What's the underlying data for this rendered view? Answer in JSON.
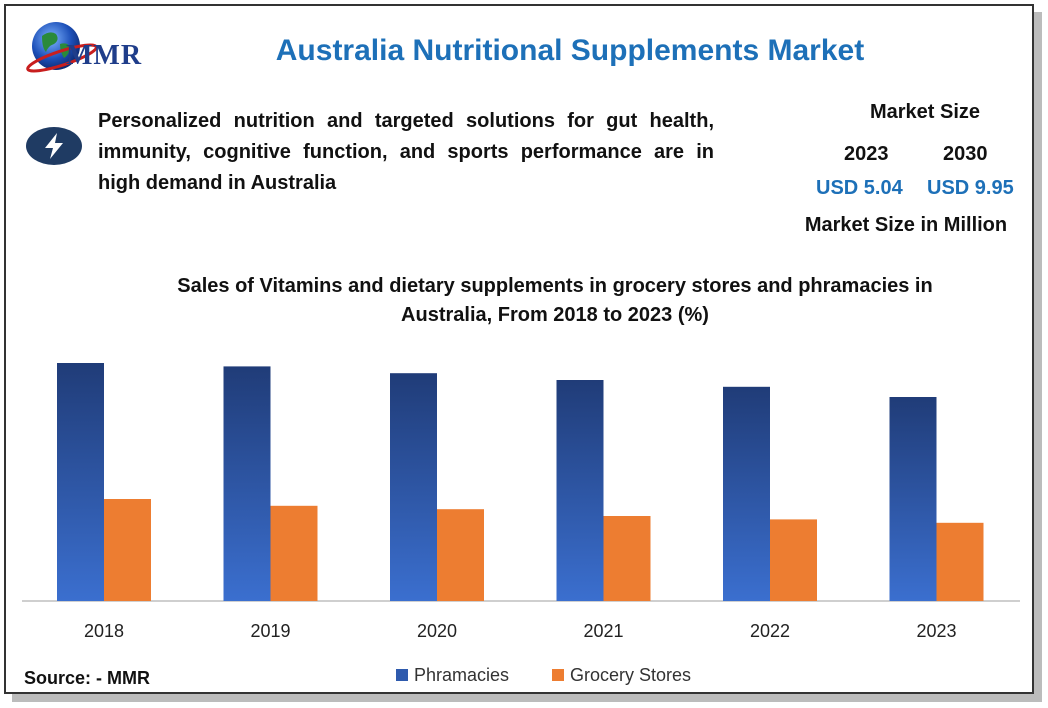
{
  "header": {
    "logo_text": "MMR",
    "title": "Australia Nutritional Supplements Market"
  },
  "headline": {
    "icon": "lightning-bolt-icon",
    "text": "Personalized nutrition and targeted solutions for gut health, immunity, cognitive function, and sports performance are in high demand in Australia"
  },
  "market_size": {
    "label": "Market Size",
    "year_2023": "2023",
    "year_2030": "2030",
    "value_2023": "USD 5.04",
    "value_2030": "USD 9.95",
    "unit": "Market Size in Million"
  },
  "source": "Source: - MMR",
  "colors": {
    "title_blue": "#1d70b8",
    "pharmacies_top": "#203c78",
    "pharmacies_bottom": "#3b6fcf",
    "grocery": "#ed7d31"
  },
  "chart_data": {
    "type": "bar",
    "title": "Sales of Vitamins and dietary supplements in grocery stores and phramacies in Australia, From 2018 to 2023 (%)",
    "categories": [
      "2018",
      "2019",
      "2020",
      "2021",
      "2022",
      "2023"
    ],
    "series": [
      {
        "name": "Phramacies",
        "values": [
          70,
          69,
          67,
          65,
          63,
          60
        ]
      },
      {
        "name": "Grocery Stores",
        "values": [
          30,
          28,
          27,
          25,
          24,
          23
        ]
      }
    ],
    "xlabel": "",
    "ylabel": "",
    "ylim": [
      0,
      75
    ],
    "grid": false,
    "legend": "bottom"
  }
}
